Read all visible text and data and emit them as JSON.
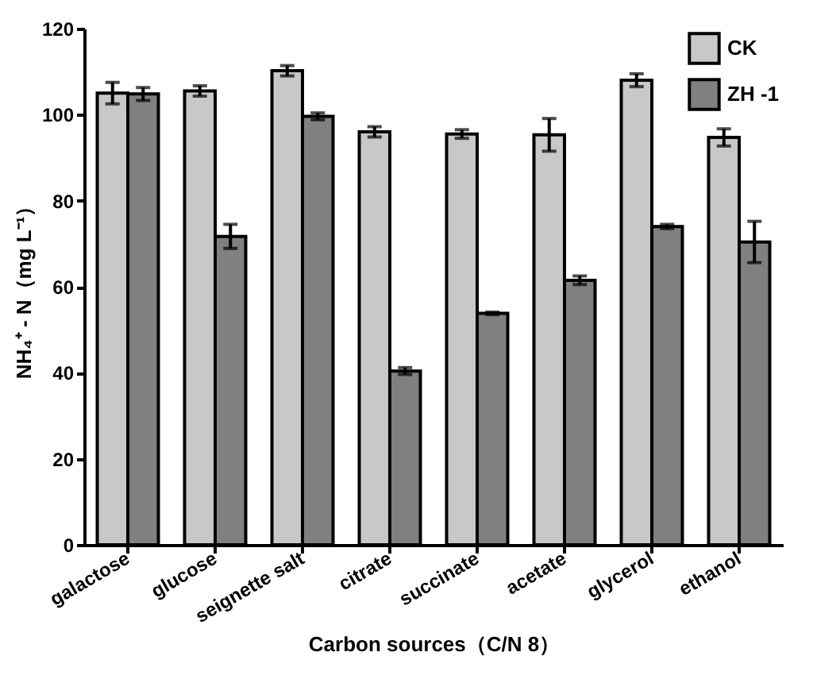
{
  "chart_data": {
    "type": "bar",
    "xlabel": "Carbon sources（C/N 8）",
    "ylabel": "NH₄⁺ - N（mg L⁻¹）",
    "categories": [
      "galactose",
      "glucose",
      "seignette salt",
      "citrate",
      "succinate",
      "acetate",
      "glycerol",
      "ethanol"
    ],
    "series": [
      {
        "name": "CK",
        "color": "#c8c8c8",
        "values": [
          105,
          105.5,
          110.2,
          96,
          95.5,
          95.3,
          108,
          94.7
        ],
        "errors": [
          2.5,
          1.2,
          1.2,
          1.2,
          1,
          3.8,
          1.5,
          2
        ]
      },
      {
        "name": "ZH -1",
        "color": "#808080",
        "values": [
          104.8,
          71.7,
          99.6,
          40.4,
          53.8,
          61.5,
          74,
          70.4
        ],
        "errors": [
          1.5,
          2.8,
          0.8,
          0.8,
          0.3,
          1,
          0.5,
          4.8
        ]
      }
    ],
    "ylim": [
      0,
      120
    ],
    "yticks": [
      0,
      20,
      40,
      60,
      80,
      100,
      120
    ],
    "grid": false,
    "legend": "top right"
  }
}
